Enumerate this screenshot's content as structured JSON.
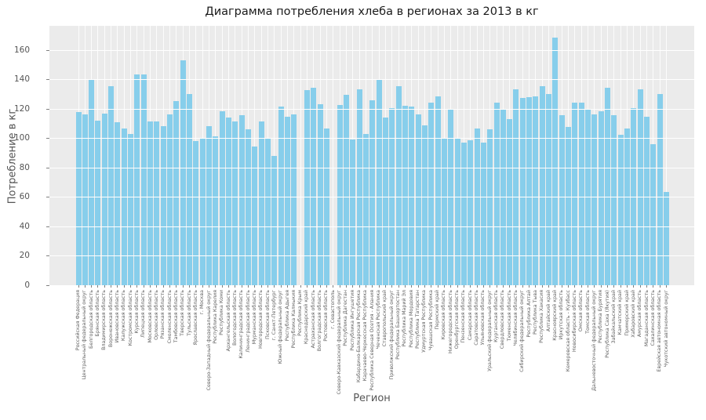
{
  "title": "Диаграмма потребления хлеба в регионах за 2013 в кг",
  "chart_data": {
    "type": "bar",
    "title": "Диаграмма потребления хлеба в регионах за 2013 в кг",
    "xlabel": "Регион",
    "ylabel": "Потребление в кг",
    "ylim": [
      0,
      176.5
    ],
    "yticks": [
      0,
      20,
      40,
      60,
      80,
      100,
      120,
      140,
      160
    ],
    "grid": "on",
    "legend": "none",
    "bar_color": "#87CEEB",
    "plot_bg_color": "#EBEBEB",
    "grid_color": "#FFFFFF",
    "categories": [
      "Российская Федерация",
      "Центральный федеральный округ",
      "Белгородская область",
      "Брянская область",
      "Владимирская область",
      "Воронежская область",
      "Ивановская область",
      "Калужская область",
      "Костромская область",
      "Курская область",
      "Липецкая область",
      "Московская область",
      "Орловская область",
      "Рязанская область",
      "Смоленская область",
      "Тамбовская область",
      "Тверская область",
      "Тульская область",
      "Ярославская область",
      "г. Москва",
      "Северо-Западный федеральный округ",
      "Республика Карелия",
      "Республика Коми",
      "Архангельская область",
      "Вологодская область",
      "Калининградская область",
      "Ленинградская область",
      "Мурманская область",
      "Новгородская область",
      "Псковская область",
      "г. Санкт-Петербург",
      "Южный федеральный округ",
      "Республика Адыгея",
      "Республика Калмыкия",
      "Республика Крым",
      "Краснодарский край",
      "Астраханская область",
      "Волгоградская область",
      "Ростовская область",
      "г. Севастополь",
      "Северо-Кавказский федеральный округ",
      "Республика Дагестан",
      "Республика Ингушетия",
      "Кабардино-Балкарская Республика",
      "Карачаево-Черкесская Республика",
      "Республика Северная Осетия - Алания",
      "Чеченская Республика",
      "Ставропольский край",
      "Приволжский федеральный округ",
      "Республика Башкортостан",
      "Республика Марий Эл",
      "Республика Мордовия",
      "Республика Татарстан",
      "Удмуртская Республика",
      "Чувашская Республика",
      "Пермский край",
      "Кировская область",
      "Нижегородская область",
      "Оренбургская область",
      "Пензенская область",
      "Самарская область",
      "Саратовская область",
      "Ульяновская область",
      "Уральский федеральный округ",
      "Курганская область",
      "Свердловская область",
      "Тюменская область",
      "Челябинская область",
      "Сибирский федеральный округ",
      "Республика Алтай",
      "Республика Тыва",
      "Республика Хакасия",
      "Алтайский край",
      "Красноярский край",
      "Иркутская область",
      "Кемеровская область - Кузбасс",
      "Новосибирская область",
      "Омская область",
      "Томская область",
      "Дальневосточный федеральный округ",
      "Республика Бурятия",
      "Республика Саха (Якутия)",
      "Забайкальский край",
      "Камчатский край",
      "Приморский край",
      "Хабаровский край",
      "Амурская область",
      "Магаданская область",
      "Сахалинская область",
      "Еврейская автономная область",
      "Чукотский автономный округ"
    ],
    "values": [
      118,
      116.5,
      139.5,
      112,
      117,
      135.5,
      111,
      106.5,
      103,
      143.5,
      143.5,
      111.5,
      111.5,
      108.5,
      116.5,
      125.5,
      153,
      130,
      98,
      100,
      108.5,
      101.5,
      118.5,
      114,
      111.5,
      115.5,
      106,
      94.5,
      111.5,
      99.5,
      88,
      121.5,
      114.5,
      116,
      0,
      133,
      134.5,
      123,
      106.5,
      0,
      122.5,
      129.5,
      99,
      133.5,
      103,
      126,
      140,
      114,
      120.5,
      135.5,
      122,
      121.5,
      116.5,
      109,
      124,
      128.5,
      100,
      119.5,
      100.5,
      97,
      98.5,
      106.5,
      97,
      106,
      124,
      119.5,
      113,
      133.5,
      127.5,
      128,
      128.5,
      135.5,
      130,
      168.5,
      115.5,
      107.5,
      124,
      124,
      119.5,
      116.5,
      118.5,
      134.5,
      115.5,
      102.5,
      106.5,
      120.5,
      133.5,
      114.5,
      96,
      130,
      63.5
    ]
  }
}
